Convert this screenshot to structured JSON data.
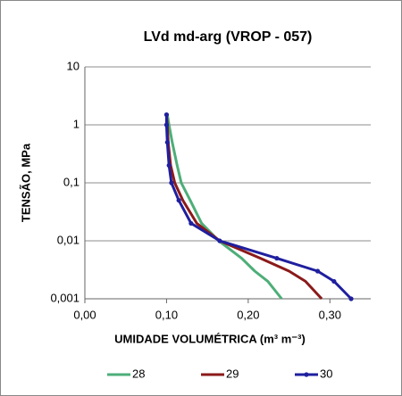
{
  "chart_data": {
    "type": "line",
    "title": "LVd md-arg  (VROP - 057)",
    "x_label": "UMIDADE VOLUMÉTRICA (m³ m⁻³)",
    "y_label": "TENSÃO, MPa",
    "log_y": true,
    "grid": true,
    "legend": "bottom",
    "xlim": [
      0,
      0.35
    ],
    "xticks": [
      {
        "value": 0,
        "label": "0,00"
      },
      {
        "value": 0.1,
        "label": "0,10"
      },
      {
        "value": 0.2,
        "label": "0,20"
      },
      {
        "value": 0.3,
        "label": "0,30"
      }
    ],
    "ylim": [
      0.001,
      10
    ],
    "yticks": [
      10,
      1,
      {
        "value": 0.1,
        "label": "0,1"
      },
      {
        "value": 0.01,
        "label": "0,01"
      },
      {
        "value": 0.001,
        "label": "0,001"
      }
    ],
    "series": [
      {
        "name": "28",
        "color": "#4dae78",
        "marker": false,
        "x": [
          0.101,
          0.103,
          0.107,
          0.113,
          0.118,
          0.129,
          0.143,
          0.164,
          0.192,
          0.208,
          0.224,
          0.241
        ],
        "values": [
          1.5,
          1,
          0.5,
          0.2,
          0.1,
          0.05,
          0.02,
          0.01,
          0.005,
          0.003,
          0.002,
          0.001
        ]
      },
      {
        "name": "29",
        "color": "#8b1a1a",
        "marker": false,
        "x": [
          0.1,
          0.101,
          0.102,
          0.105,
          0.11,
          0.12,
          0.137,
          0.165,
          0.215,
          0.25,
          0.27,
          0.29
        ],
        "values": [
          1.5,
          1,
          0.5,
          0.2,
          0.1,
          0.05,
          0.02,
          0.01,
          0.005,
          0.003,
          0.002,
          0.001
        ]
      },
      {
        "name": "30",
        "color": "#1f1f9f",
        "marker": true,
        "x": [
          0.1,
          0.1,
          0.101,
          0.103,
          0.106,
          0.115,
          0.13,
          0.165,
          0.235,
          0.285,
          0.305,
          0.326
        ],
        "values": [
          1.5,
          1,
          0.5,
          0.2,
          0.1,
          0.05,
          0.02,
          0.01,
          0.005,
          0.003,
          0.002,
          0.001
        ]
      }
    ]
  }
}
